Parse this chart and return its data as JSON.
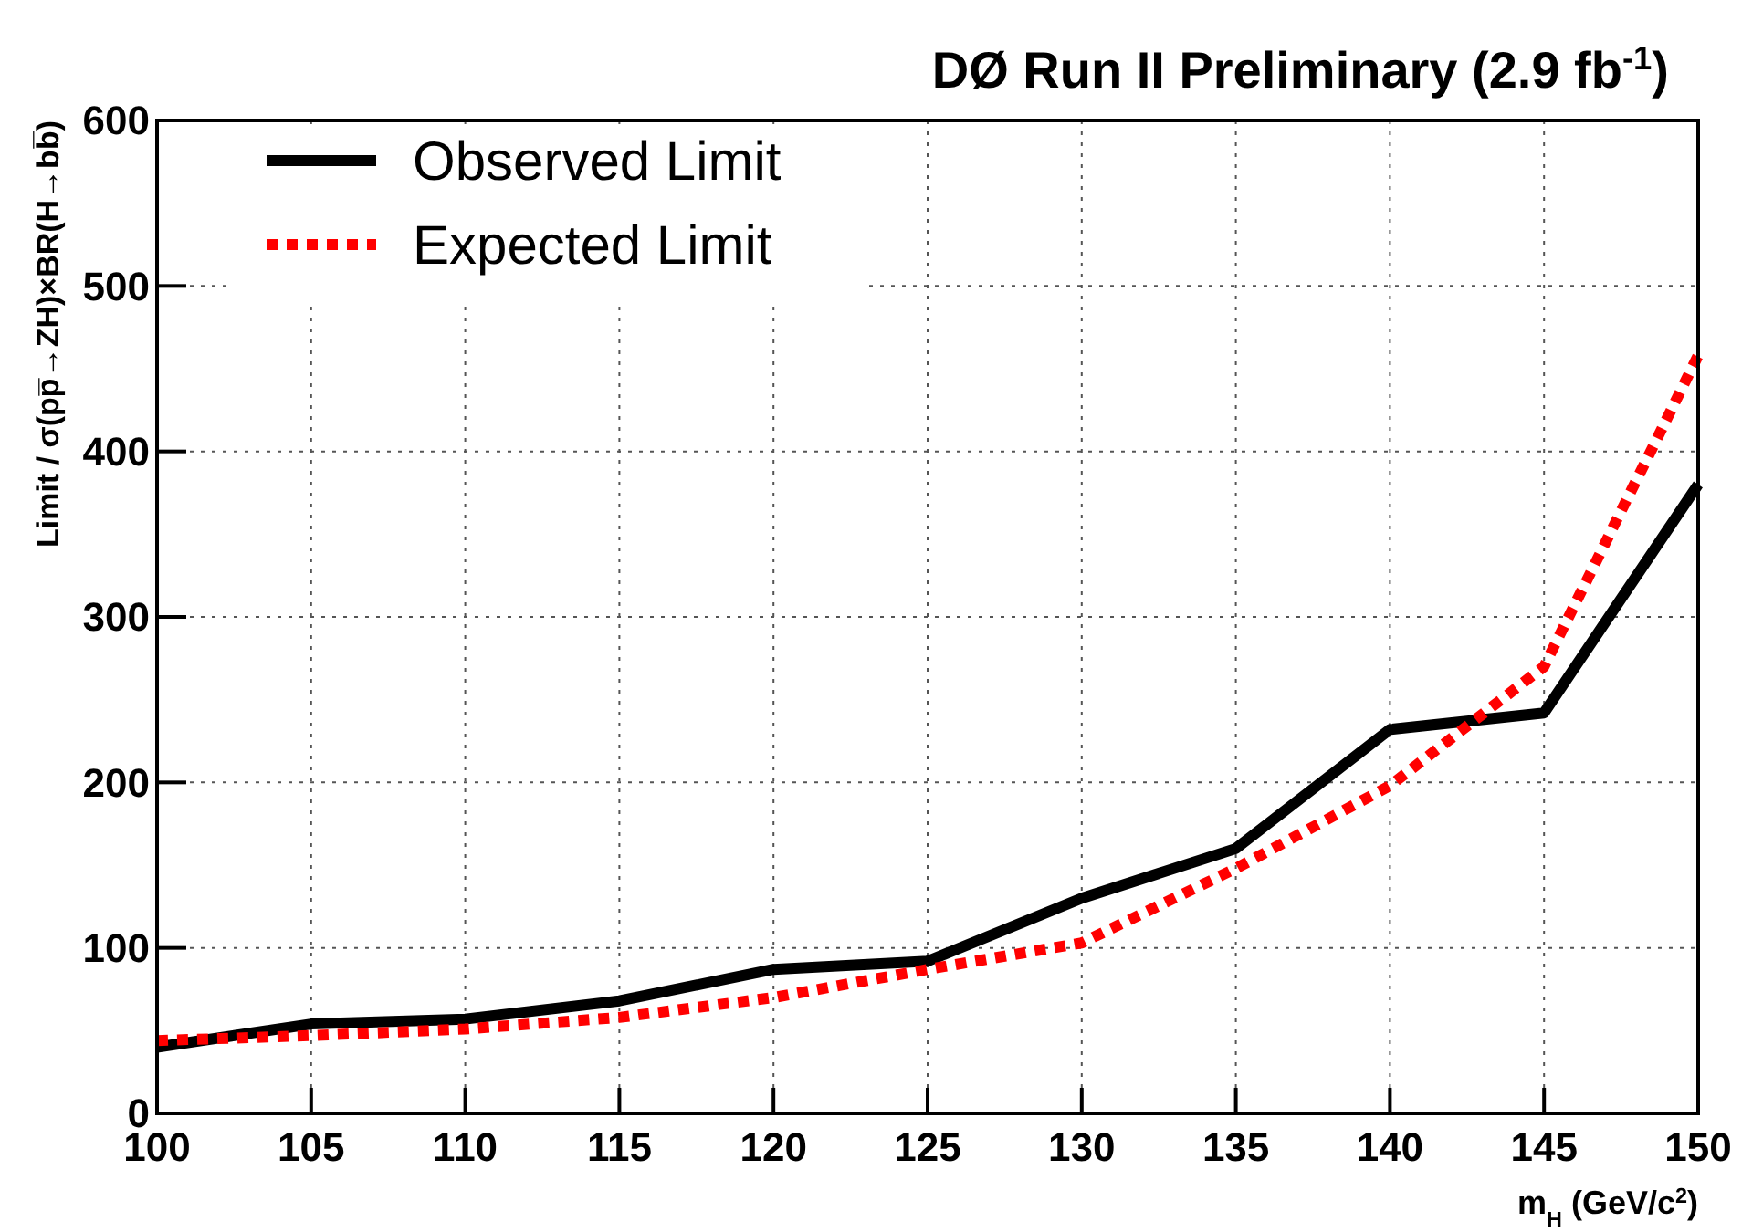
{
  "chart_data": {
    "type": "line",
    "title": "DØ Run II Preliminary (2.9 fb$^{-1}$)",
    "xlabel": "m$_{H}$ (GeV/c$^{2}$)",
    "ylabel": "Limit / σ(pp̅→ZH)×BR(H→bb̅)",
    "x": [
      100,
      105,
      110,
      115,
      120,
      125,
      130,
      135,
      140,
      145,
      150
    ],
    "series": [
      {
        "name": "Observed Limit",
        "color": "#000000",
        "line_style": "solid",
        "values": [
          40,
          54,
          57,
          68,
          87,
          92,
          130,
          160,
          232,
          242,
          380
        ]
      },
      {
        "name": "Expected Limit",
        "color": "#ff0000",
        "line_style": "dotted",
        "values": [
          44,
          47,
          51,
          58,
          70,
          87,
          103,
          148,
          198,
          270,
          458
        ]
      }
    ],
    "xlim": [
      100,
      150
    ],
    "xticks": [
      100,
      105,
      110,
      115,
      120,
      125,
      130,
      135,
      140,
      145,
      150
    ],
    "ylim": [
      0,
      600
    ],
    "yticks": [
      0,
      100,
      200,
      300,
      400,
      500,
      600
    ],
    "grid": true,
    "legend": "top left"
  }
}
